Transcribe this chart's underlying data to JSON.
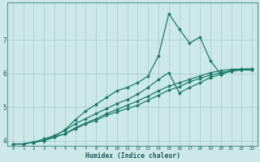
{
  "xlabel": "Humidex (Indice chaleur)",
  "ylabel": "",
  "bg_color": "#cce8e8",
  "grid_color": "#aad0d0",
  "line_color": "#1a7a6a",
  "xlim": [
    -0.5,
    23.5
  ],
  "ylim": [
    3.85,
    8.1
  ],
  "yticks": [
    4,
    5,
    6,
    7
  ],
  "xticks": [
    0,
    1,
    2,
    3,
    4,
    5,
    6,
    7,
    8,
    9,
    10,
    11,
    12,
    13,
    14,
    15,
    16,
    17,
    18,
    19,
    20,
    21,
    22,
    23
  ],
  "lines": [
    {
      "x": [
        0,
        1,
        2,
        3,
        4,
        5,
        6,
        7,
        8,
        9,
        10,
        11,
        12,
        13,
        14,
        15,
        16,
        17,
        18,
        19,
        20,
        21,
        22,
        23
      ],
      "y": [
        3.9,
        3.9,
        3.95,
        4.0,
        4.1,
        4.2,
        4.35,
        4.5,
        4.6,
        4.75,
        4.85,
        4.95,
        5.05,
        5.2,
        5.35,
        5.5,
        5.6,
        5.75,
        5.85,
        5.95,
        6.02,
        6.08,
        6.1,
        6.1
      ],
      "marker": "D",
      "markersize": 1.5,
      "linewidth": 0.9
    },
    {
      "x": [
        0,
        1,
        2,
        3,
        4,
        5,
        6,
        7,
        8,
        9,
        10,
        11,
        12,
        13,
        14,
        15,
        16,
        17,
        18,
        19,
        20,
        21,
        22,
        23
      ],
      "y": [
        3.9,
        3.9,
        3.95,
        4.0,
        4.1,
        4.2,
        4.38,
        4.52,
        4.65,
        4.8,
        4.92,
        5.05,
        5.18,
        5.32,
        5.48,
        5.62,
        5.72,
        5.82,
        5.92,
        6.02,
        6.08,
        6.12,
        6.13,
        6.12
      ],
      "marker": "D",
      "markersize": 1.5,
      "linewidth": 0.9
    },
    {
      "x": [
        0,
        1,
        2,
        3,
        4,
        5,
        6,
        7,
        8,
        9,
        10,
        11,
        12,
        13,
        14,
        15,
        16,
        17,
        18,
        19,
        20,
        21,
        22,
        23
      ],
      "y": [
        3.9,
        3.9,
        3.95,
        4.05,
        4.15,
        4.3,
        4.5,
        4.65,
        4.8,
        4.95,
        5.1,
        5.22,
        5.38,
        5.58,
        5.82,
        6.02,
        5.42,
        5.58,
        5.72,
        5.88,
        5.97,
        6.07,
        6.12,
        6.13
      ],
      "marker": "D",
      "markersize": 1.5,
      "linewidth": 0.9
    },
    {
      "x": [
        2,
        3,
        4,
        5,
        6,
        7,
        8,
        9,
        10,
        11,
        12,
        13,
        14,
        15,
        16,
        17,
        18,
        19,
        20,
        21,
        22,
        23
      ],
      "y": [
        3.95,
        4.0,
        4.12,
        4.32,
        4.62,
        4.88,
        5.08,
        5.28,
        5.48,
        5.58,
        5.72,
        5.92,
        6.52,
        7.78,
        7.32,
        6.9,
        7.08,
        6.38,
        5.97,
        6.07,
        6.12,
        6.13
      ],
      "marker": "D",
      "markersize": 1.5,
      "linewidth": 0.9
    }
  ]
}
